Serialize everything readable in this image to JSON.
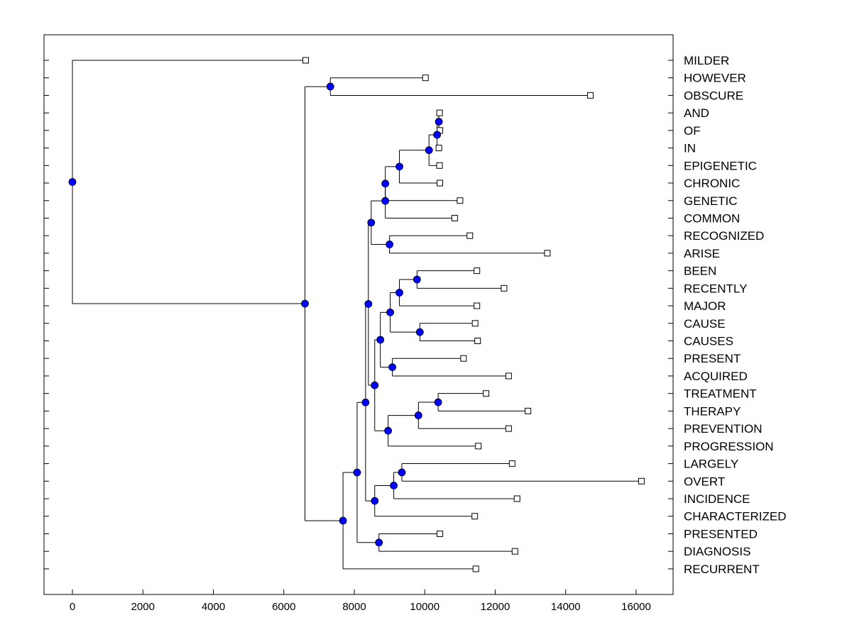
{
  "chart_data": {
    "type": "dendrogram",
    "title": "",
    "xlabel": "",
    "ylabel": "",
    "xlim": [
      -800,
      16900
    ],
    "x_ticks": [
      0,
      2000,
      4000,
      6000,
      8000,
      10000,
      12000,
      14000,
      16000
    ],
    "x_tick_labels": [
      "0",
      "2000",
      "4000",
      "6000",
      "8000",
      "10000",
      "12000",
      "14000",
      "16000"
    ],
    "colors": {
      "node_fill": "#0000ff",
      "leaf_fill": "#ffffff",
      "line": "#000000"
    },
    "leaves": [
      {
        "label": "MILDER",
        "x": 6620
      },
      {
        "label": "HOWEVER",
        "x": 10020
      },
      {
        "label": "OBSCURE",
        "x": 14700
      },
      {
        "label": "AND",
        "x": 10420
      },
      {
        "label": "OF",
        "x": 10430
      },
      {
        "label": "IN",
        "x": 10400
      },
      {
        "label": "EPIGENETIC",
        "x": 10420
      },
      {
        "label": "CHRONIC",
        "x": 10430
      },
      {
        "label": "GENETIC",
        "x": 11000
      },
      {
        "label": "COMMON",
        "x": 10850
      },
      {
        "label": "RECOGNIZED",
        "x": 11280
      },
      {
        "label": "ARISE",
        "x": 13480
      },
      {
        "label": "BEEN",
        "x": 11480
      },
      {
        "label": "RECENTLY",
        "x": 12250
      },
      {
        "label": "MAJOR",
        "x": 11480
      },
      {
        "label": "CAUSE",
        "x": 11430
      },
      {
        "label": "CAUSES",
        "x": 11500
      },
      {
        "label": "PRESENT",
        "x": 11100
      },
      {
        "label": "ACQUIRED",
        "x": 12380
      },
      {
        "label": "TREATMENT",
        "x": 11740
      },
      {
        "label": "THERAPY",
        "x": 12930
      },
      {
        "label": "PREVENTION",
        "x": 12380
      },
      {
        "label": "PROGRESSION",
        "x": 11520
      },
      {
        "label": "LARGELY",
        "x": 12480
      },
      {
        "label": "OVERT",
        "x": 16150
      },
      {
        "label": "INCIDENCE",
        "x": 12620
      },
      {
        "label": "CHARACTERIZED",
        "x": 11420
      },
      {
        "label": "PRESENTED",
        "x": 10430
      },
      {
        "label": "DIAGNOSIS",
        "x": 12560
      },
      {
        "label": "RECURRENT",
        "x": 11450
      }
    ],
    "merges": [
      {
        "id": "n1",
        "x": 10400,
        "children": [
          "AND",
          "OF"
        ]
      },
      {
        "id": "n2",
        "x": 10350,
        "children": [
          "n1",
          "IN"
        ]
      },
      {
        "id": "n3",
        "x": 10120,
        "children": [
          "n2",
          "EPIGENETIC"
        ]
      },
      {
        "id": "n4",
        "x": 9280,
        "children": [
          "n3",
          "CHRONIC"
        ]
      },
      {
        "id": "n5",
        "x": 8880,
        "children": [
          "n4",
          "GENETIC"
        ]
      },
      {
        "id": "n6",
        "x": 8880,
        "children": [
          "n5",
          "COMMON"
        ]
      },
      {
        "id": "n7",
        "x": 9000,
        "children": [
          "RECOGNIZED",
          "ARISE"
        ]
      },
      {
        "id": "n8",
        "x": 8480,
        "children": [
          "n6",
          "n7"
        ]
      },
      {
        "id": "n9",
        "x": 9780,
        "children": [
          "BEEN",
          "RECENTLY"
        ]
      },
      {
        "id": "n10",
        "x": 9280,
        "children": [
          "n9",
          "MAJOR"
        ]
      },
      {
        "id": "n11",
        "x": 9860,
        "children": [
          "CAUSE",
          "CAUSES"
        ]
      },
      {
        "id": "n12",
        "x": 9020,
        "children": [
          "n10",
          "n11"
        ]
      },
      {
        "id": "n13",
        "x": 9080,
        "children": [
          "PRESENT",
          "ACQUIRED"
        ]
      },
      {
        "id": "n14",
        "x": 8740,
        "children": [
          "n12",
          "n13"
        ]
      },
      {
        "id": "n15",
        "x": 10380,
        "children": [
          "TREATMENT",
          "THERAPY"
        ]
      },
      {
        "id": "n16",
        "x": 9820,
        "children": [
          "n15",
          "PREVENTION"
        ]
      },
      {
        "id": "n17",
        "x": 8960,
        "children": [
          "n16",
          "PROGRESSION"
        ]
      },
      {
        "id": "n18",
        "x": 8580,
        "children": [
          "n14",
          "n17"
        ]
      },
      {
        "id": "n19",
        "x": 8400,
        "children": [
          "n8",
          "n18"
        ]
      },
      {
        "id": "n20",
        "x": 9350,
        "children": [
          "LARGELY",
          "OVERT"
        ]
      },
      {
        "id": "n21",
        "x": 9120,
        "children": [
          "n20",
          "INCIDENCE"
        ]
      },
      {
        "id": "n22",
        "x": 8580,
        "children": [
          "n21",
          "CHARACTERIZED"
        ]
      },
      {
        "id": "n23",
        "x": 8320,
        "children": [
          "n19",
          "n22"
        ]
      },
      {
        "id": "n24",
        "x": 8700,
        "children": [
          "PRESENTED",
          "DIAGNOSIS"
        ]
      },
      {
        "id": "n25",
        "x": 8080,
        "children": [
          "n23",
          "n24"
        ]
      },
      {
        "id": "n26",
        "x": 7680,
        "children": [
          "n25",
          "RECURRENT"
        ]
      },
      {
        "id": "n27",
        "x": 7320,
        "children": [
          "HOWEVER",
          "OBSCURE"
        ]
      },
      {
        "id": "n28",
        "x": 6600,
        "children": [
          "n27",
          "n26"
        ]
      },
      {
        "id": "n29",
        "x": 0,
        "children": [
          "MILDER",
          "n28"
        ]
      }
    ]
  }
}
